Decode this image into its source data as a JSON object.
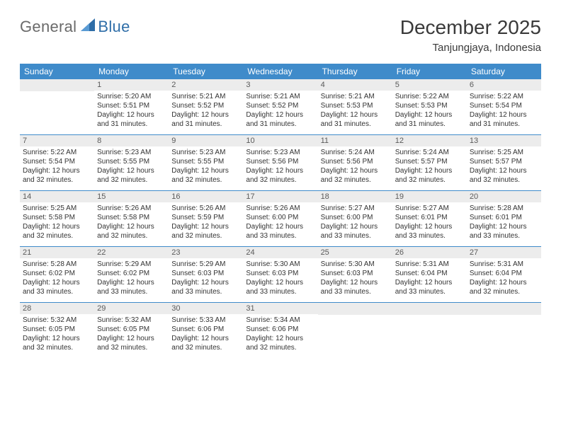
{
  "brand": {
    "general": "General",
    "blue": "Blue"
  },
  "title": "December 2025",
  "location": "Tanjungjaya, Indonesia",
  "weekdays": [
    "Sunday",
    "Monday",
    "Tuesday",
    "Wednesday",
    "Thursday",
    "Friday",
    "Saturday"
  ],
  "colors": {
    "header_band": "#3f8bca",
    "daynum_bg": "#ececec",
    "rule": "#3f8bca",
    "logo_gray": "#6a6a6a",
    "logo_blue": "#2f6ea8"
  },
  "weeks": [
    [
      {
        "n": "",
        "lines": []
      },
      {
        "n": "1",
        "lines": [
          "Sunrise: 5:20 AM",
          "Sunset: 5:51 PM",
          "Daylight: 12 hours",
          "and 31 minutes."
        ]
      },
      {
        "n": "2",
        "lines": [
          "Sunrise: 5:21 AM",
          "Sunset: 5:52 PM",
          "Daylight: 12 hours",
          "and 31 minutes."
        ]
      },
      {
        "n": "3",
        "lines": [
          "Sunrise: 5:21 AM",
          "Sunset: 5:52 PM",
          "Daylight: 12 hours",
          "and 31 minutes."
        ]
      },
      {
        "n": "4",
        "lines": [
          "Sunrise: 5:21 AM",
          "Sunset: 5:53 PM",
          "Daylight: 12 hours",
          "and 31 minutes."
        ]
      },
      {
        "n": "5",
        "lines": [
          "Sunrise: 5:22 AM",
          "Sunset: 5:53 PM",
          "Daylight: 12 hours",
          "and 31 minutes."
        ]
      },
      {
        "n": "6",
        "lines": [
          "Sunrise: 5:22 AM",
          "Sunset: 5:54 PM",
          "Daylight: 12 hours",
          "and 31 minutes."
        ]
      }
    ],
    [
      {
        "n": "7",
        "lines": [
          "Sunrise: 5:22 AM",
          "Sunset: 5:54 PM",
          "Daylight: 12 hours",
          "and 32 minutes."
        ]
      },
      {
        "n": "8",
        "lines": [
          "Sunrise: 5:23 AM",
          "Sunset: 5:55 PM",
          "Daylight: 12 hours",
          "and 32 minutes."
        ]
      },
      {
        "n": "9",
        "lines": [
          "Sunrise: 5:23 AM",
          "Sunset: 5:55 PM",
          "Daylight: 12 hours",
          "and 32 minutes."
        ]
      },
      {
        "n": "10",
        "lines": [
          "Sunrise: 5:23 AM",
          "Sunset: 5:56 PM",
          "Daylight: 12 hours",
          "and 32 minutes."
        ]
      },
      {
        "n": "11",
        "lines": [
          "Sunrise: 5:24 AM",
          "Sunset: 5:56 PM",
          "Daylight: 12 hours",
          "and 32 minutes."
        ]
      },
      {
        "n": "12",
        "lines": [
          "Sunrise: 5:24 AM",
          "Sunset: 5:57 PM",
          "Daylight: 12 hours",
          "and 32 minutes."
        ]
      },
      {
        "n": "13",
        "lines": [
          "Sunrise: 5:25 AM",
          "Sunset: 5:57 PM",
          "Daylight: 12 hours",
          "and 32 minutes."
        ]
      }
    ],
    [
      {
        "n": "14",
        "lines": [
          "Sunrise: 5:25 AM",
          "Sunset: 5:58 PM",
          "Daylight: 12 hours",
          "and 32 minutes."
        ]
      },
      {
        "n": "15",
        "lines": [
          "Sunrise: 5:26 AM",
          "Sunset: 5:58 PM",
          "Daylight: 12 hours",
          "and 32 minutes."
        ]
      },
      {
        "n": "16",
        "lines": [
          "Sunrise: 5:26 AM",
          "Sunset: 5:59 PM",
          "Daylight: 12 hours",
          "and 32 minutes."
        ]
      },
      {
        "n": "17",
        "lines": [
          "Sunrise: 5:26 AM",
          "Sunset: 6:00 PM",
          "Daylight: 12 hours",
          "and 33 minutes."
        ]
      },
      {
        "n": "18",
        "lines": [
          "Sunrise: 5:27 AM",
          "Sunset: 6:00 PM",
          "Daylight: 12 hours",
          "and 33 minutes."
        ]
      },
      {
        "n": "19",
        "lines": [
          "Sunrise: 5:27 AM",
          "Sunset: 6:01 PM",
          "Daylight: 12 hours",
          "and 33 minutes."
        ]
      },
      {
        "n": "20",
        "lines": [
          "Sunrise: 5:28 AM",
          "Sunset: 6:01 PM",
          "Daylight: 12 hours",
          "and 33 minutes."
        ]
      }
    ],
    [
      {
        "n": "21",
        "lines": [
          "Sunrise: 5:28 AM",
          "Sunset: 6:02 PM",
          "Daylight: 12 hours",
          "and 33 minutes."
        ]
      },
      {
        "n": "22",
        "lines": [
          "Sunrise: 5:29 AM",
          "Sunset: 6:02 PM",
          "Daylight: 12 hours",
          "and 33 minutes."
        ]
      },
      {
        "n": "23",
        "lines": [
          "Sunrise: 5:29 AM",
          "Sunset: 6:03 PM",
          "Daylight: 12 hours",
          "and 33 minutes."
        ]
      },
      {
        "n": "24",
        "lines": [
          "Sunrise: 5:30 AM",
          "Sunset: 6:03 PM",
          "Daylight: 12 hours",
          "and 33 minutes."
        ]
      },
      {
        "n": "25",
        "lines": [
          "Sunrise: 5:30 AM",
          "Sunset: 6:03 PM",
          "Daylight: 12 hours",
          "and 33 minutes."
        ]
      },
      {
        "n": "26",
        "lines": [
          "Sunrise: 5:31 AM",
          "Sunset: 6:04 PM",
          "Daylight: 12 hours",
          "and 33 minutes."
        ]
      },
      {
        "n": "27",
        "lines": [
          "Sunrise: 5:31 AM",
          "Sunset: 6:04 PM",
          "Daylight: 12 hours",
          "and 32 minutes."
        ]
      }
    ],
    [
      {
        "n": "28",
        "lines": [
          "Sunrise: 5:32 AM",
          "Sunset: 6:05 PM",
          "Daylight: 12 hours",
          "and 32 minutes."
        ]
      },
      {
        "n": "29",
        "lines": [
          "Sunrise: 5:32 AM",
          "Sunset: 6:05 PM",
          "Daylight: 12 hours",
          "and 32 minutes."
        ]
      },
      {
        "n": "30",
        "lines": [
          "Sunrise: 5:33 AM",
          "Sunset: 6:06 PM",
          "Daylight: 12 hours",
          "and 32 minutes."
        ]
      },
      {
        "n": "31",
        "lines": [
          "Sunrise: 5:34 AM",
          "Sunset: 6:06 PM",
          "Daylight: 12 hours",
          "and 32 minutes."
        ]
      },
      {
        "n": "",
        "lines": []
      },
      {
        "n": "",
        "lines": []
      },
      {
        "n": "",
        "lines": []
      }
    ]
  ]
}
